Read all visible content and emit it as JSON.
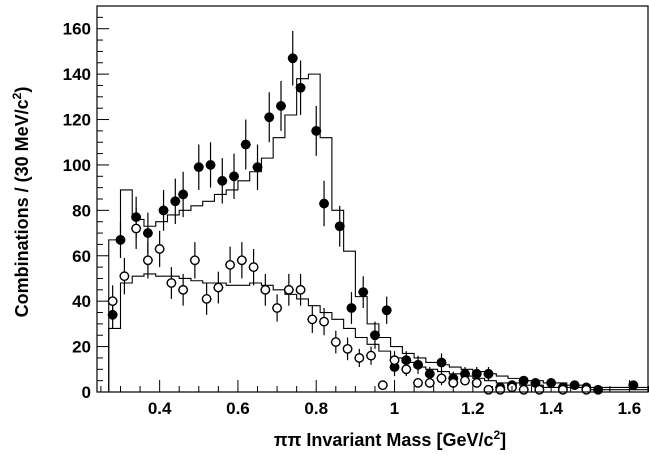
{
  "chart_data": {
    "type": "scatter",
    "title": "",
    "xlabel": "ππ Invariant Mass [GeV/c²]",
    "xlabel_parts": {
      "main": "ππ Invariant Mass [GeV/c",
      "sup": "2",
      "end": "]"
    },
    "ylabel": "Combinations / (30 MeV/c²)",
    "ylabel_parts": {
      "main": "Combinations / (30 MeV/c",
      "sup": "2",
      "end": ")"
    },
    "xlim": [
      0.24,
      1.65
    ],
    "ylim": [
      0,
      170
    ],
    "x_ticks": [
      0.4,
      0.6,
      0.8,
      1,
      1.2,
      1.4,
      1.6
    ],
    "x_tick_labels": [
      "0.4",
      "0.6",
      "0.8",
      "1",
      "1.2",
      "1.4",
      "1.6"
    ],
    "y_ticks": [
      0,
      20,
      40,
      60,
      80,
      100,
      120,
      140,
      160
    ],
    "y_tick_labels": [
      "0",
      "20",
      "40",
      "60",
      "80",
      "100",
      "120",
      "140",
      "160"
    ],
    "grid": false,
    "legend": "none",
    "series": [
      {
        "marker": "filled-circle",
        "color": "#000000",
        "points": [
          [
            0.28,
            34,
            6
          ],
          [
            0.3,
            67,
            8
          ],
          [
            0.34,
            77,
            9
          ],
          [
            0.37,
            70,
            9
          ],
          [
            0.41,
            80,
            9
          ],
          [
            0.44,
            84,
            10
          ],
          [
            0.46,
            87,
            10
          ],
          [
            0.5,
            99,
            10
          ],
          [
            0.53,
            100,
            10
          ],
          [
            0.56,
            93,
            10
          ],
          [
            0.59,
            95,
            10
          ],
          [
            0.62,
            109,
            11
          ],
          [
            0.65,
            99,
            10
          ],
          [
            0.68,
            121,
            11
          ],
          [
            0.71,
            126,
            11
          ],
          [
            0.74,
            147,
            12
          ],
          [
            0.76,
            134,
            12
          ],
          [
            0.8,
            115,
            11
          ],
          [
            0.82,
            83,
            10
          ],
          [
            0.86,
            73,
            9
          ],
          [
            0.89,
            37,
            7
          ],
          [
            0.92,
            44,
            7
          ],
          [
            0.95,
            25,
            6
          ],
          [
            0.98,
            36,
            6
          ],
          [
            1.0,
            11,
            4
          ],
          [
            1.03,
            14,
            4
          ],
          [
            1.06,
            12,
            4
          ],
          [
            1.09,
            8,
            3
          ],
          [
            1.12,
            13,
            4
          ],
          [
            1.15,
            6,
            3
          ],
          [
            1.18,
            8,
            3
          ],
          [
            1.21,
            8,
            3
          ],
          [
            1.24,
            8,
            3
          ],
          [
            1.27,
            2,
            2
          ],
          [
            1.3,
            3,
            2
          ],
          [
            1.33,
            5,
            2
          ],
          [
            1.36,
            4,
            2
          ],
          [
            1.4,
            4,
            2
          ],
          [
            1.43,
            2,
            1
          ],
          [
            1.46,
            3,
            2
          ],
          [
            1.49,
            2,
            1
          ],
          [
            1.52,
            1,
            1
          ],
          [
            1.61,
            3,
            2
          ]
        ]
      },
      {
        "marker": "open-circle",
        "color": "#000000",
        "points": [
          [
            0.28,
            40,
            7
          ],
          [
            0.31,
            51,
            8
          ],
          [
            0.34,
            72,
            9
          ],
          [
            0.37,
            58,
            8
          ],
          [
            0.4,
            63,
            8
          ],
          [
            0.43,
            48,
            7
          ],
          [
            0.46,
            45,
            7
          ],
          [
            0.49,
            58,
            8
          ],
          [
            0.52,
            41,
            7
          ],
          [
            0.55,
            46,
            7
          ],
          [
            0.58,
            56,
            8
          ],
          [
            0.61,
            58,
            8
          ],
          [
            0.64,
            55,
            8
          ],
          [
            0.67,
            45,
            7
          ],
          [
            0.7,
            37,
            6
          ],
          [
            0.73,
            45,
            7
          ],
          [
            0.76,
            45,
            7
          ],
          [
            0.79,
            32,
            6
          ],
          [
            0.82,
            31,
            6
          ],
          [
            0.85,
            22,
            5
          ],
          [
            0.88,
            19,
            5
          ],
          [
            0.91,
            15,
            4
          ],
          [
            0.94,
            16,
            4
          ],
          [
            0.97,
            3,
            2
          ],
          [
            1.0,
            14,
            4
          ],
          [
            1.03,
            10,
            3
          ],
          [
            1.06,
            4,
            2
          ],
          [
            1.09,
            4,
            2
          ],
          [
            1.12,
            6,
            3
          ],
          [
            1.15,
            4,
            2
          ],
          [
            1.18,
            5,
            2
          ],
          [
            1.21,
            4,
            2
          ],
          [
            1.24,
            1,
            1
          ],
          [
            1.27,
            1,
            1
          ],
          [
            1.3,
            2,
            1
          ],
          [
            1.33,
            1,
            1
          ],
          [
            1.37,
            1,
            1
          ],
          [
            1.43,
            1,
            1
          ],
          [
            1.49,
            1,
            1
          ]
        ]
      }
    ],
    "histograms": [
      {
        "style": "step",
        "color": "#000000",
        "edges": [
          0.27,
          0.3,
          0.33,
          0.36,
          0.39,
          0.42,
          0.45,
          0.48,
          0.51,
          0.54,
          0.57,
          0.6,
          0.63,
          0.66,
          0.69,
          0.72,
          0.75,
          0.78,
          0.81,
          0.84,
          0.87,
          0.9,
          0.93,
          0.96,
          0.99,
          1.02,
          1.05,
          1.08,
          1.11,
          1.14,
          1.17,
          1.2,
          1.23,
          1.26,
          1.29,
          1.32,
          1.35,
          1.38,
          1.41,
          1.44,
          1.47,
          1.5,
          1.53,
          1.56,
          1.59,
          1.62,
          1.65
        ],
        "values": [
          67,
          89,
          76,
          73,
          75,
          78,
          80,
          82,
          84,
          87,
          89,
          93,
          97,
          103,
          112,
          122,
          138,
          140,
          112,
          80,
          62,
          42,
          30,
          24,
          20,
          17,
          15,
          13,
          12,
          11,
          10,
          9,
          8,
          7,
          6,
          5,
          5,
          4,
          4,
          3,
          3,
          2,
          2,
          2,
          2,
          2
        ]
      },
      {
        "style": "step",
        "color": "#000000",
        "edges": [
          0.27,
          0.3,
          0.33,
          0.36,
          0.39,
          0.42,
          0.45,
          0.48,
          0.51,
          0.54,
          0.57,
          0.6,
          0.63,
          0.66,
          0.69,
          0.72,
          0.75,
          0.78,
          0.81,
          0.84,
          0.87,
          0.9,
          0.93,
          0.96,
          0.99,
          1.02,
          1.05,
          1.08,
          1.11,
          1.14,
          1.17,
          1.2,
          1.23,
          1.26,
          1.29,
          1.32,
          1.35,
          1.38,
          1.41,
          1.44,
          1.47,
          1.5,
          1.53,
          1.56,
          1.59,
          1.62,
          1.65
        ],
        "values": [
          28,
          48,
          51,
          52,
          51,
          51,
          50,
          49,
          48,
          48,
          47,
          47,
          48,
          47,
          45,
          43,
          41,
          38,
          35,
          32,
          28,
          24,
          21,
          18,
          15,
          13,
          11,
          10,
          9,
          8,
          7,
          6,
          5,
          4,
          4,
          3,
          3,
          2,
          2,
          2,
          2,
          1,
          1,
          1,
          1,
          1
        ]
      }
    ]
  }
}
